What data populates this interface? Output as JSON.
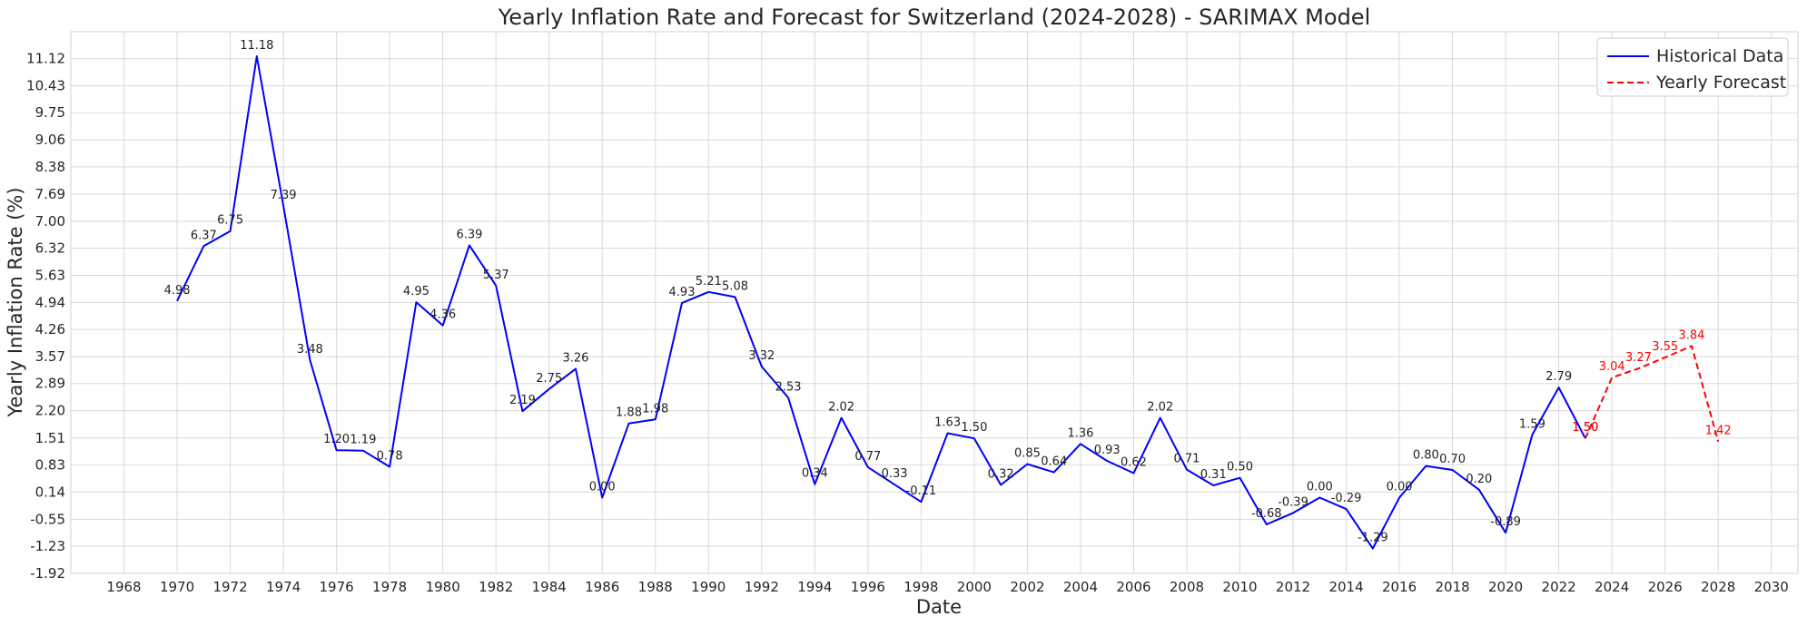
{
  "chart_data": {
    "type": "line",
    "title": "Yearly Inflation Rate and Forecast for Switzerland (2024-2028) - SARIMAX Model",
    "xlabel": "Date",
    "ylabel": "Yearly Inflation Rate (%)",
    "xlim": [
      1966,
      2031
    ],
    "ylim": [
      -1.92,
      11.8
    ],
    "xticks": [
      1968,
      1970,
      1972,
      1974,
      1976,
      1978,
      1980,
      1982,
      1984,
      1986,
      1988,
      1990,
      1992,
      1994,
      1996,
      1998,
      2000,
      2002,
      2004,
      2006,
      2008,
      2010,
      2012,
      2014,
      2016,
      2018,
      2020,
      2022,
      2024,
      2026,
      2028,
      2030
    ],
    "yticks": [
      -1.92,
      -1.23,
      -0.55,
      0.14,
      0.83,
      1.51,
      2.2,
      2.89,
      3.57,
      4.26,
      4.94,
      5.63,
      6.32,
      7.0,
      7.69,
      8.38,
      9.06,
      9.75,
      10.43,
      11.12
    ],
    "ytick_labels": [
      "-1.92",
      "-1.23",
      "-0.55",
      "0.14",
      "0.83",
      "1.51",
      "2.20",
      "2.89",
      "3.57",
      "4.26",
      "4.94",
      "5.63",
      "6.32",
      "7.00",
      "7.69",
      "8.38",
      "9.06",
      "9.75",
      "10.43",
      "11.12"
    ],
    "grid": true,
    "legend_position": "top-right",
    "series": [
      {
        "name": "Historical Data",
        "color": "#0000ff",
        "style": "solid",
        "x": [
          1970,
          1971,
          1972,
          1973,
          1974,
          1975,
          1976,
          1977,
          1978,
          1979,
          1980,
          1981,
          1982,
          1983,
          1984,
          1985,
          1986,
          1987,
          1988,
          1989,
          1990,
          1991,
          1992,
          1993,
          1994,
          1995,
          1996,
          1997,
          1998,
          1999,
          2000,
          2001,
          2002,
          2003,
          2004,
          2005,
          2006,
          2007,
          2008,
          2009,
          2010,
          2011,
          2012,
          2013,
          2014,
          2015,
          2016,
          2017,
          2018,
          2019,
          2020,
          2021,
          2022,
          2023
        ],
        "y": [
          4.98,
          6.37,
          6.75,
          11.18,
          7.39,
          3.48,
          1.2,
          1.19,
          0.78,
          4.95,
          4.36,
          6.39,
          5.37,
          2.19,
          2.75,
          3.26,
          0.0,
          1.88,
          1.98,
          4.93,
          5.21,
          5.08,
          3.32,
          2.53,
          0.34,
          2.02,
          0.77,
          0.33,
          -0.11,
          1.63,
          1.5,
          0.32,
          0.85,
          0.64,
          1.36,
          0.93,
          0.62,
          2.02,
          0.71,
          0.31,
          0.5,
          -0.68,
          -0.39,
          0.0,
          -0.29,
          -1.29,
          0.0,
          0.8,
          0.7,
          0.2,
          -0.89,
          1.59,
          2.79,
          1.5
        ],
        "labels": [
          "4.98",
          "6.37",
          "6.75",
          "11.18",
          "7.39",
          "3.48",
          "1.20",
          "1.19",
          "0.78",
          "4.95",
          "4.36",
          "6.39",
          "5.37",
          "2.19",
          "2.75",
          "3.26",
          "0.00",
          "1.88",
          "1.98",
          "4.93",
          "5.21",
          "5.08",
          "3.32",
          "2.53",
          "0.34",
          "2.02",
          "0.77",
          "0.33",
          "-0.11",
          "1.63",
          "1.50",
          "0.32",
          "0.85",
          "0.64",
          "1.36",
          "0.93",
          "0.62",
          "2.02",
          "0.71",
          "0.31",
          "0.50",
          "-0.68",
          "-0.39",
          "0.00",
          "-0.29",
          "-1.29",
          "0.00",
          "0.80",
          "0.70",
          "0.20",
          "-0.89",
          "1.59",
          "2.79",
          "1.50"
        ]
      },
      {
        "name": "Yearly Forecast",
        "color": "#ff0000",
        "style": "dashed",
        "x": [
          2023,
          2024,
          2025,
          2026,
          2027,
          2028
        ],
        "y": [
          1.5,
          3.04,
          3.27,
          3.55,
          3.84,
          1.42
        ],
        "labels": [
          "1.50",
          "3.04",
          "3.27",
          "3.55",
          "3.84",
          "1.42"
        ]
      }
    ]
  }
}
